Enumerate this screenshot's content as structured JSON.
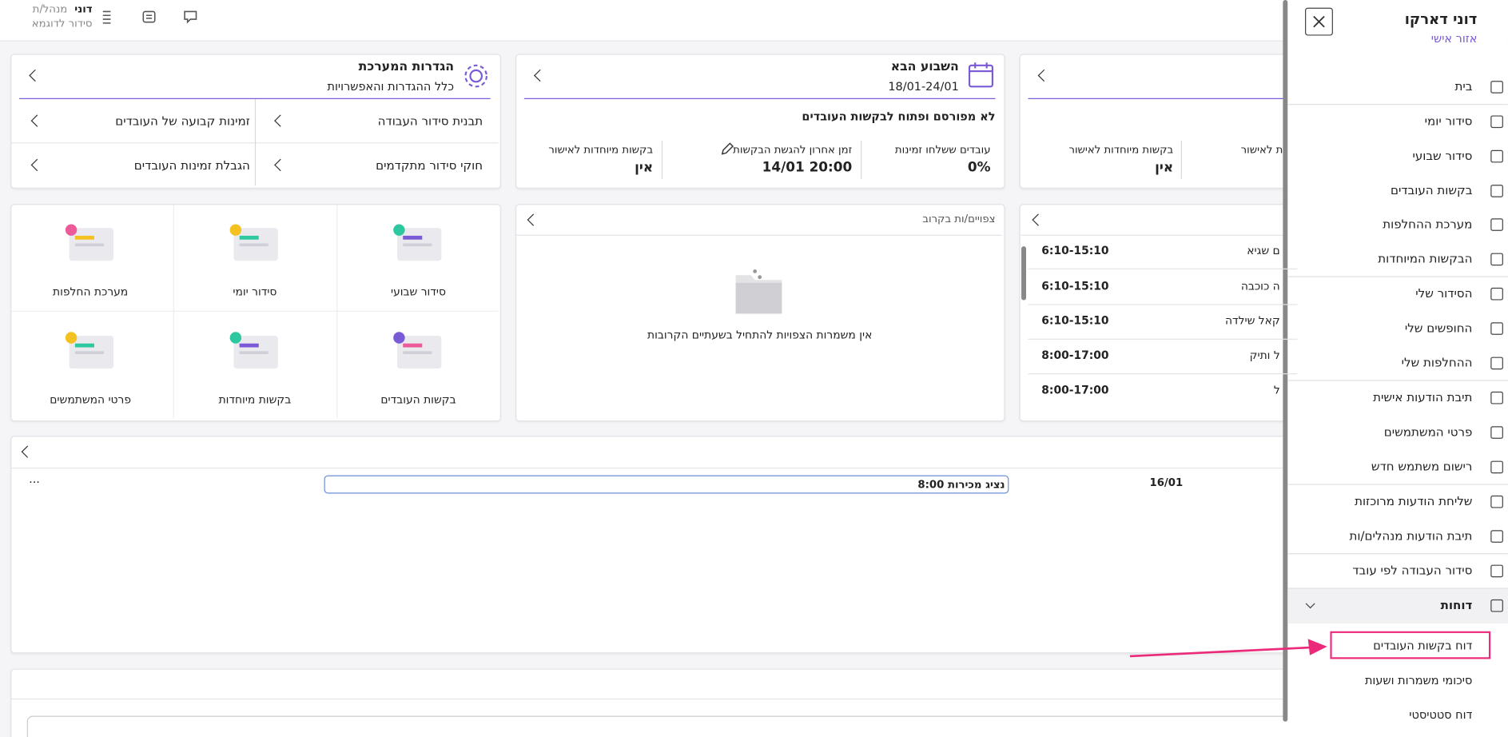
{
  "topbar": {
    "user": "דוני",
    "role": "מנהל/ת",
    "schedule": "סידור לדוגמא"
  },
  "sidebar": {
    "title": "דוני דארקו",
    "subtitle": "אזור אישי",
    "menu": [
      "בית",
      "סידור יומי",
      "סידור שבועי",
      "בקשות העובדים",
      "מערכת ההחלפות",
      "הבקשות המיוחדות",
      "הסידור שלי",
      "החופשים שלי",
      "ההחלפות שלי",
      "תיבת הודעות אישית",
      "פרטי המשתמשים",
      "רישום משתמש חדש",
      "שליחת הודעות מרוכזות",
      "תיבת הודעות מנהלים/ות",
      "סידור העבודה לפי עובד",
      "דוחות"
    ],
    "submenu": [
      "דוח בקשות העובדים",
      "סיכומי משמרות ושעות",
      "דוח סטטיסטי"
    ]
  },
  "settings_card": {
    "title": "הגדרות המערכת",
    "subtitle": "כלל ההגדרות והאפשרויות",
    "links": [
      "תבנית סידור העבודה",
      "זמינות קבועה של העובדים",
      "חוקי סידור מתקדמים",
      "הגבלת זמינות העובדים"
    ]
  },
  "next_week_card": {
    "title": "השבוע הבא",
    "dates": "18/01-24/01",
    "status": "לא מפורסם ופתוח לבקשות העובדים",
    "stats": [
      {
        "label": "עובדים ששלחו זמינות",
        "value": "0%"
      },
      {
        "label": "זמן אחרון להגשת הבקשות",
        "value": "14/01 20:00"
      },
      {
        "label": "בקשות מיוחדות לאישור",
        "value": "אין"
      }
    ]
  },
  "current_week_card": {
    "stats": [
      {
        "label": "בקשות מיוחדות לאישור",
        "value": "אין"
      },
      {
        "label": "ת לאישור"
      }
    ]
  },
  "shortcuts": [
    "סידור שבועי",
    "סידור יומי",
    "מערכת החלפות",
    "בקשות העובדים",
    "בקשות מיוחדות",
    "פרטי המשתמשים"
  ],
  "upcoming_card": {
    "title": "צפויים/ות בקרוב",
    "empty": "אין משמרות הצפויות להתחיל בשעתיים הקרובות"
  },
  "shifts": [
    {
      "name": "ם שגיא",
      "time": "6:10-15:10"
    },
    {
      "name": "ה כוכבה",
      "time": "6:10-15:10"
    },
    {
      "name": "קאל שילדה",
      "time": "6:10-15:10"
    },
    {
      "name": "ל ותיק",
      "time": "8:00-17:00"
    },
    {
      "name": "ל",
      "time": "8:00-17:00"
    }
  ],
  "table_row": {
    "date": "16/01",
    "shift": "נציג מכירות 8:00",
    "menu": "···"
  }
}
